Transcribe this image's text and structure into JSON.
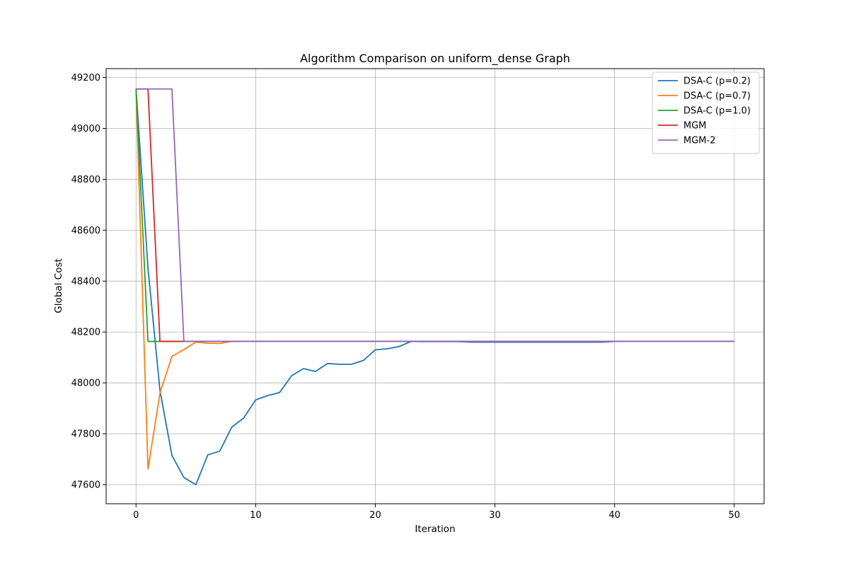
{
  "chart_data": {
    "type": "line",
    "title": "Algorithm Comparison on uniform_dense Graph",
    "xlabel": "Iteration",
    "ylabel": "Global Cost",
    "xlim": [
      -2.5,
      52.5
    ],
    "ylim": [
      47525,
      49235
    ],
    "xticks": [
      0,
      10,
      20,
      30,
      40,
      50
    ],
    "yticks": [
      47600,
      47800,
      48000,
      48200,
      48400,
      48600,
      48800,
      49000,
      49200
    ],
    "grid": true,
    "legend_position": "top-right",
    "x": [
      0,
      1,
      2,
      3,
      4,
      5,
      6,
      7,
      8,
      9,
      10,
      11,
      12,
      13,
      14,
      15,
      16,
      17,
      18,
      19,
      20,
      21,
      22,
      23,
      24,
      25,
      26,
      27,
      28,
      29,
      30,
      31,
      32,
      33,
      34,
      35,
      36,
      37,
      38,
      39,
      40,
      41,
      42,
      43,
      44,
      45,
      46,
      47,
      48,
      49,
      50
    ],
    "series": [
      {
        "name": "DSA-C (p=0.2)",
        "color": "#1f77b4",
        "values": [
          49155,
          48450,
          47970,
          47715,
          47628,
          47600,
          47717,
          47732,
          47826,
          47862,
          47933,
          47950,
          47962,
          48028,
          48056,
          48045,
          48076,
          48073,
          48073,
          48088,
          48130,
          48134,
          48143,
          48163,
          48162,
          48162,
          48162,
          48162,
          48160,
          48160,
          48160,
          48160,
          48160,
          48160,
          48160,
          48160,
          48160,
          48160,
          48160,
          48160,
          48163,
          48163,
          48163,
          48163,
          48163,
          48163,
          48163,
          48163,
          48163,
          48163,
          48163
        ]
      },
      {
        "name": "DSA-C (p=0.7)",
        "color": "#ff7f0e",
        "values": [
          49155,
          47662,
          47960,
          48104,
          48131,
          48160,
          48156,
          48155,
          48163,
          48163,
          48163,
          48163,
          48163,
          48163,
          48163,
          48163,
          48163,
          48163,
          48163,
          48163,
          48163,
          48163,
          48163,
          48163,
          48163,
          48163,
          48163,
          48163,
          48163,
          48163,
          48163,
          48163,
          48163,
          48163,
          48163,
          48163,
          48163,
          48163,
          48163,
          48163,
          48163,
          48163,
          48163,
          48163,
          48163,
          48163,
          48163,
          48163,
          48163,
          48163,
          48163
        ]
      },
      {
        "name": "DSA-C (p=1.0)",
        "color": "#2ca02c",
        "values": [
          49155,
          48163,
          48163,
          48163,
          48163,
          48163,
          48163,
          48163,
          48163,
          48163,
          48163,
          48163,
          48163,
          48163,
          48163,
          48163,
          48163,
          48163,
          48163,
          48163,
          48163,
          48163,
          48163,
          48163,
          48163,
          48163,
          48163,
          48163,
          48163,
          48163,
          48163,
          48163,
          48163,
          48163,
          48163,
          48163,
          48163,
          48163,
          48163,
          48163,
          48163,
          48163,
          48163,
          48163,
          48163,
          48163,
          48163,
          48163,
          48163,
          48163,
          48163
        ]
      },
      {
        "name": "MGM",
        "color": "#d62728",
        "values": [
          49155,
          49155,
          48163,
          48163,
          48163,
          48163,
          48163,
          48163,
          48163,
          48163,
          48163,
          48163,
          48163,
          48163,
          48163,
          48163,
          48163,
          48163,
          48163,
          48163,
          48163,
          48163,
          48163,
          48163,
          48163,
          48163,
          48163,
          48163,
          48163,
          48163,
          48163,
          48163,
          48163,
          48163,
          48163,
          48163,
          48163,
          48163,
          48163,
          48163,
          48163,
          48163,
          48163,
          48163,
          48163,
          48163,
          48163,
          48163,
          48163,
          48163,
          48163
        ]
      },
      {
        "name": "MGM-2",
        "color": "#9467bd",
        "values": [
          49155,
          49155,
          49155,
          49155,
          48163,
          48163,
          48163,
          48163,
          48163,
          48163,
          48163,
          48163,
          48163,
          48163,
          48163,
          48163,
          48163,
          48163,
          48163,
          48163,
          48163,
          48163,
          48163,
          48163,
          48163,
          48163,
          48163,
          48163,
          48163,
          48163,
          48163,
          48163,
          48163,
          48163,
          48163,
          48163,
          48163,
          48163,
          48163,
          48163,
          48163,
          48163,
          48163,
          48163,
          48163,
          48163,
          48163,
          48163,
          48163,
          48163,
          48163
        ]
      }
    ]
  }
}
